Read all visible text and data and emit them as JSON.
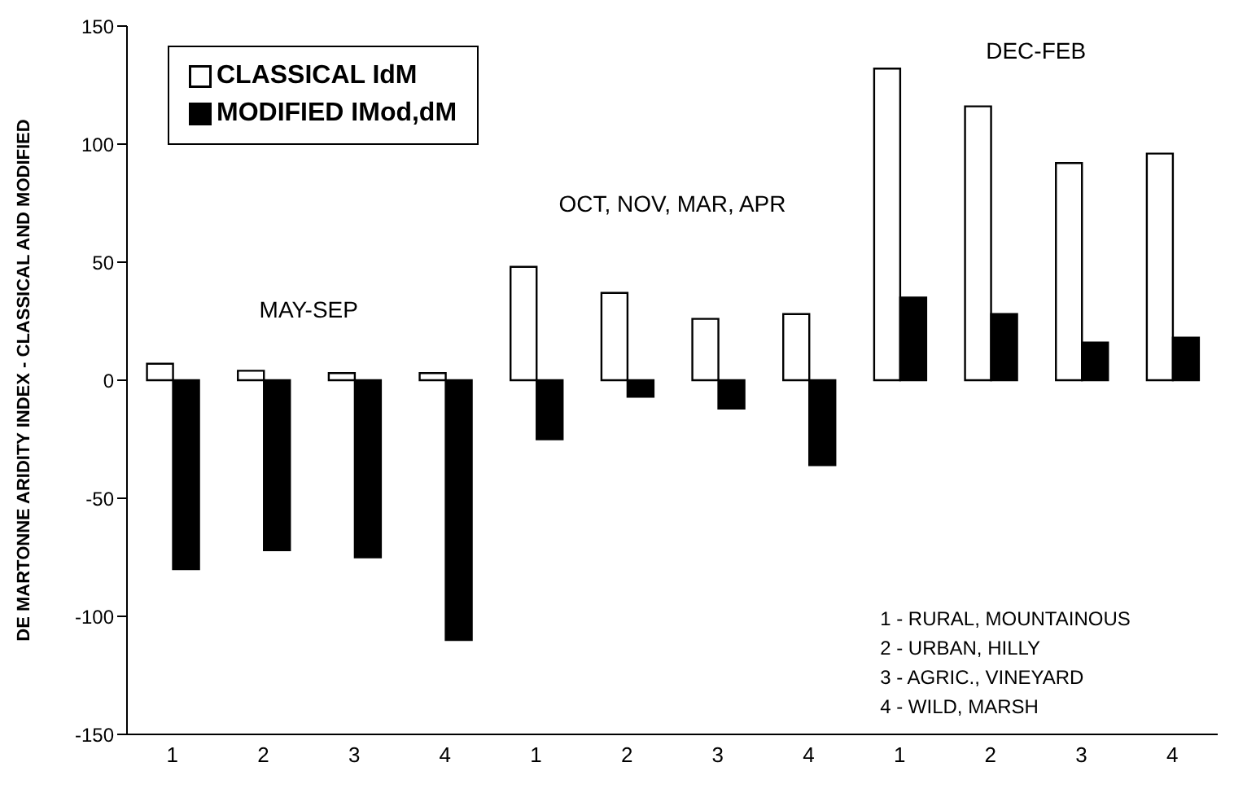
{
  "chart_data": {
    "type": "bar",
    "ylabel": "DE MARTONNE ARIDITY INDEX - CLASSICAL AND MODIFIED",
    "categories": [
      "1",
      "2",
      "3",
      "4",
      "1",
      "2",
      "3",
      "4",
      "1",
      "2",
      "3",
      "4"
    ],
    "series": [
      {
        "name": "CLASSICAL IdM",
        "color": "#ffffff",
        "values": [
          7,
          4,
          3,
          3,
          48,
          37,
          26,
          28,
          132,
          116,
          92,
          96
        ]
      },
      {
        "name": "MODIFIED IMod,dM",
        "color": "#000000",
        "values": [
          -80,
          -72,
          -75,
          -110,
          -25,
          -7,
          -12,
          -36,
          35,
          28,
          16,
          18
        ]
      }
    ],
    "ylim": [
      -150,
      150
    ],
    "yticks": [
      -150,
      -100,
      -50,
      0,
      50,
      100,
      150
    ],
    "grid": false,
    "legend": "top left",
    "annotations": [
      "MAY-SEP",
      "OCT, NOV, MAR, APR",
      "DEC-FEB",
      "1 - RURAL, MOUNTAINOUS",
      "2 - URBAN, HILLY",
      "3 - AGRIC., VINEYARD",
      "4 - WILD, MARSH"
    ]
  }
}
